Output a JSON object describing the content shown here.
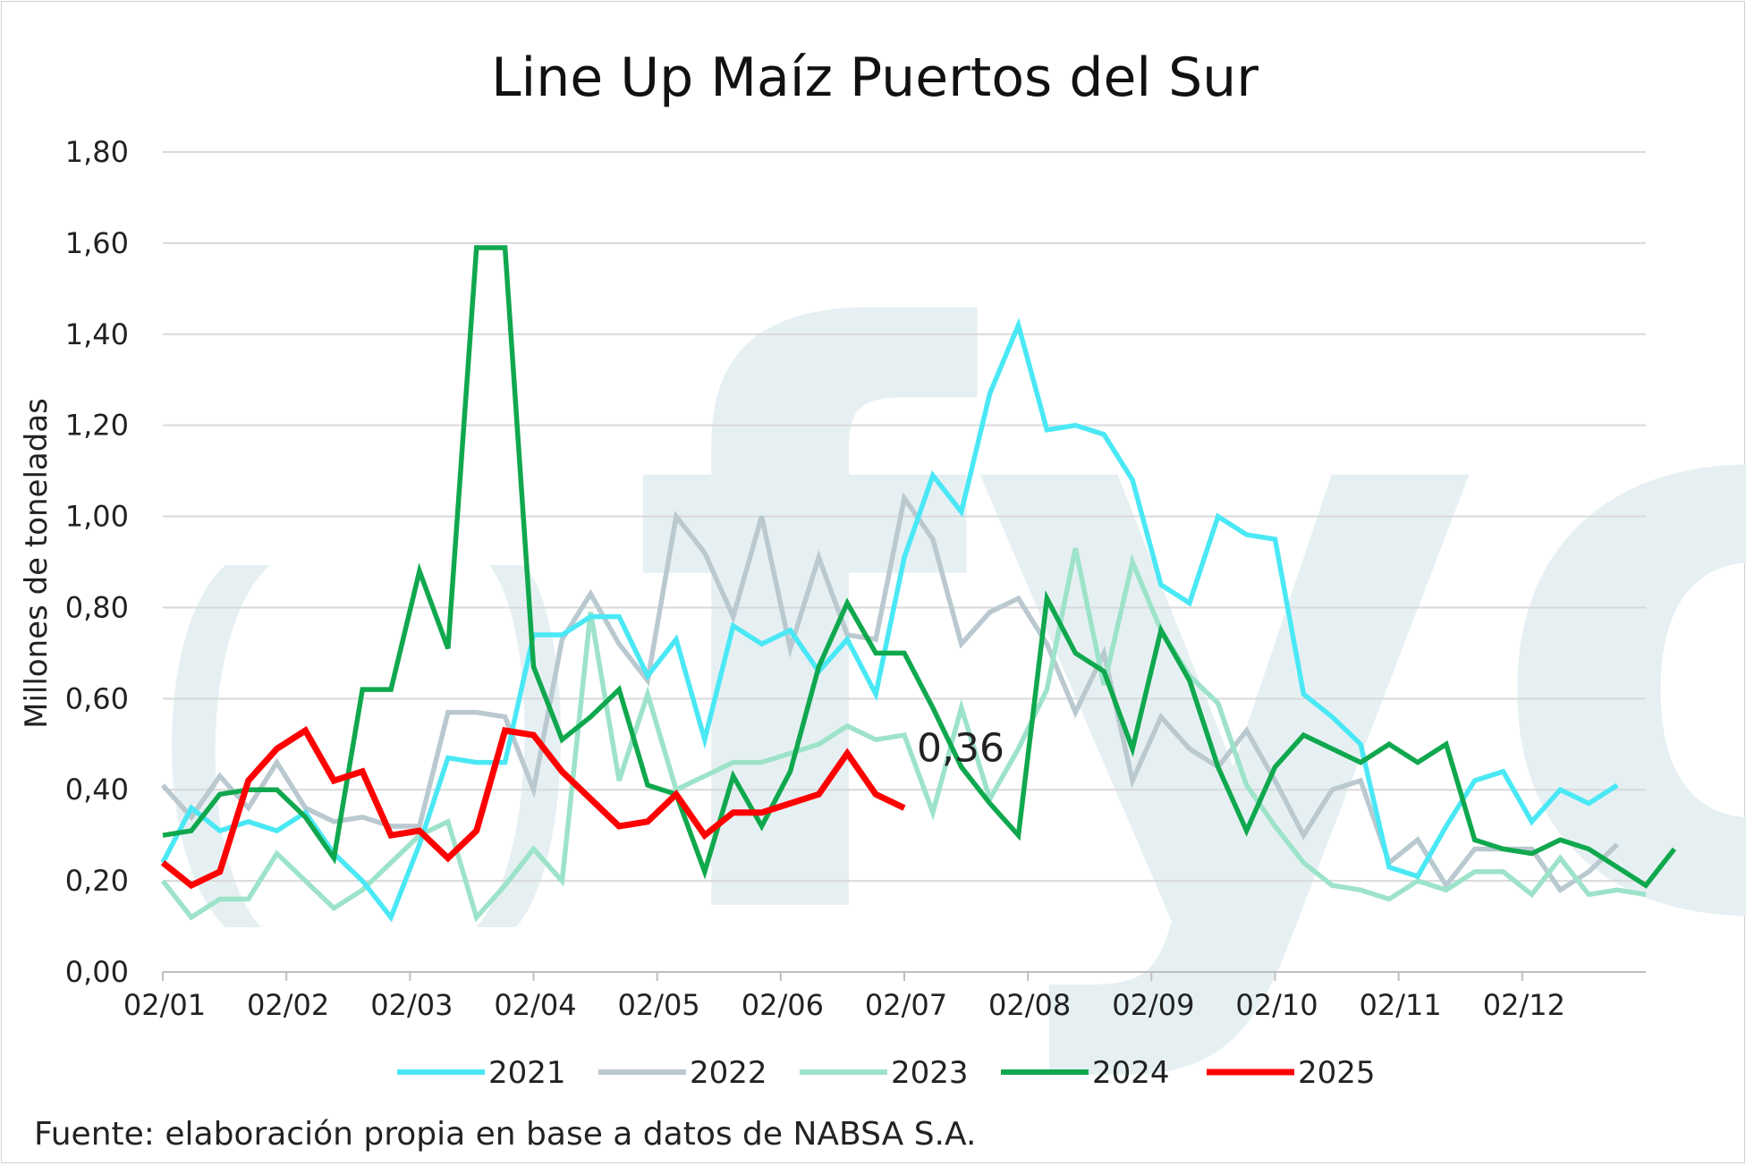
{
  "chart_data": {
    "type": "line",
    "title": "Line Up Maíz Puertos del Sur",
    "ylabel": "Millones de toneladas",
    "xlabel": "",
    "ylim": [
      0,
      1.8
    ],
    "yticks": [
      "0,00",
      "0,20",
      "0,40",
      "0,60",
      "0,80",
      "1,00",
      "1,20",
      "1,40",
      "1,60",
      "1,80"
    ],
    "ytick_values": [
      0,
      0.2,
      0.4,
      0.6,
      0.8,
      1.0,
      1.2,
      1.4,
      1.6,
      1.8
    ],
    "xticks": [
      "02/01",
      "02/02",
      "02/03",
      "02/04",
      "02/05",
      "02/06",
      "02/07",
      "02/08",
      "02/09",
      "02/10",
      "02/11",
      "02/12"
    ],
    "x_domain_weeks": [
      0,
      52
    ],
    "grid": true,
    "legend_position": "bottom",
    "series": [
      {
        "name": "2021",
        "color": "#4ae8f5",
        "values": [
          0.24,
          0.36,
          0.31,
          0.33,
          0.31,
          0.35,
          0.26,
          0.2,
          0.12,
          0.28,
          0.47,
          0.46,
          0.46,
          0.74,
          0.74,
          0.78,
          0.78,
          0.65,
          0.73,
          0.51,
          0.76,
          0.72,
          0.75,
          0.66,
          0.73,
          0.61,
          0.91,
          1.09,
          1.01,
          1.27,
          1.42,
          1.19,
          1.2,
          1.18,
          1.08,
          0.85,
          0.81,
          1.0,
          0.96,
          0.95,
          0.61,
          0.56,
          0.5,
          0.23,
          0.21,
          0.32,
          0.42,
          0.44,
          0.33,
          0.4,
          0.37,
          0.41
        ]
      },
      {
        "name": "2022",
        "color": "#b9c9cf",
        "values": [
          0.41,
          0.34,
          0.43,
          0.36,
          0.46,
          0.36,
          0.33,
          0.34,
          0.32,
          0.32,
          0.57,
          0.57,
          0.56,
          0.4,
          0.73,
          0.83,
          0.72,
          0.64,
          1.0,
          0.92,
          0.78,
          1.0,
          0.71,
          0.91,
          0.74,
          0.73,
          1.04,
          0.95,
          0.72,
          0.79,
          0.82,
          0.72,
          0.57,
          0.7,
          0.42,
          0.56,
          0.49,
          0.45,
          0.53,
          0.42,
          0.3,
          0.4,
          0.42,
          0.24,
          0.29,
          0.19,
          0.27,
          0.27,
          0.27,
          0.18,
          0.22,
          0.28
        ]
      },
      {
        "name": "2023",
        "color": "#9de3c9",
        "values": [
          0.2,
          0.12,
          0.16,
          0.16,
          0.26,
          0.2,
          0.14,
          0.18,
          0.24,
          0.3,
          0.33,
          0.12,
          0.19,
          0.27,
          0.2,
          0.79,
          0.42,
          0.61,
          0.4,
          0.43,
          0.46,
          0.46,
          0.48,
          0.5,
          0.54,
          0.51,
          0.52,
          0.35,
          0.58,
          0.38,
          0.49,
          0.62,
          0.93,
          0.63,
          0.9,
          0.75,
          0.65,
          0.59,
          0.41,
          0.32,
          0.24,
          0.19,
          0.18,
          0.16,
          0.2,
          0.18,
          0.22,
          0.22,
          0.17,
          0.25,
          0.17,
          0.18,
          0.17
        ]
      },
      {
        "name": "2024",
        "color": "#10a84e",
        "values": [
          0.3,
          0.31,
          0.39,
          0.4,
          0.4,
          0.34,
          0.25,
          0.62,
          0.62,
          0.88,
          0.71,
          1.59,
          1.59,
          0.67,
          0.51,
          0.56,
          0.62,
          0.41,
          0.39,
          0.22,
          0.43,
          0.32,
          0.44,
          0.67,
          0.81,
          0.7,
          0.7,
          0.58,
          0.45,
          0.37,
          0.3,
          0.82,
          0.7,
          0.66,
          0.49,
          0.75,
          0.64,
          0.45,
          0.31,
          0.45,
          0.52,
          0.49,
          0.46,
          0.5,
          0.46,
          0.5,
          0.29,
          0.27,
          0.26,
          0.29,
          0.27,
          0.23,
          0.19,
          0.27
        ]
      },
      {
        "name": "2025",
        "color": "#ff0000",
        "values": [
          0.24,
          0.19,
          0.22,
          0.42,
          0.49,
          0.53,
          0.42,
          0.44,
          0.3,
          0.31,
          0.25,
          0.31,
          0.53,
          0.52,
          0.44,
          0.38,
          0.32,
          0.33,
          0.39,
          0.3,
          0.35,
          0.35,
          0.37,
          0.39,
          0.48,
          0.39,
          0.36
        ]
      }
    ],
    "annotations": [
      {
        "text": "0,36",
        "series": "2025",
        "index": 26
      }
    ]
  },
  "source_note": "Fuente: elaboración propia en base a datos de NABSA S.A.",
  "watermark": {
    "text": "fyo",
    "color": "#e6f0f3"
  }
}
